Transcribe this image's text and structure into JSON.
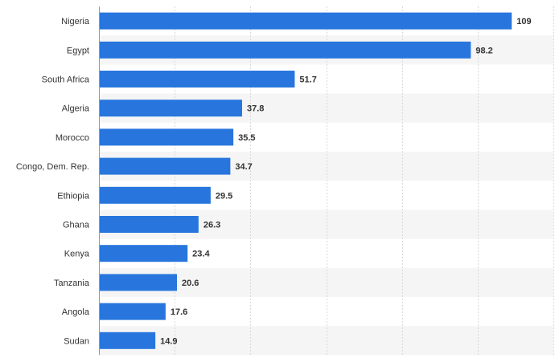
{
  "chart_data": {
    "type": "bar",
    "orientation": "horizontal",
    "title": "",
    "xlabel": "",
    "ylabel": "",
    "categories": [
      "Nigeria",
      "Egypt",
      "South Africa",
      "Algeria",
      "Morocco",
      "Congo, Dem. Rep.",
      "Ethiopia",
      "Ghana",
      "Kenya",
      "Tanzania",
      "Angola",
      "Sudan"
    ],
    "values": [
      109,
      98.2,
      51.7,
      37.8,
      35.5,
      34.7,
      29.5,
      26.3,
      23.4,
      20.6,
      17.6,
      14.9
    ],
    "value_labels": [
      "109",
      "98.2",
      "51.7",
      "37.8",
      "35.5",
      "34.7",
      "29.5",
      "26.3",
      "23.4",
      "20.6",
      "17.6",
      "14.9"
    ],
    "xlim": [
      0,
      120
    ],
    "grid": true,
    "gridline_values": [
      20,
      40,
      60,
      80,
      100,
      120
    ],
    "bar_color": "#2876dd",
    "band_color": "#f5f5f5",
    "grid_color": "#d8d8d8"
  }
}
